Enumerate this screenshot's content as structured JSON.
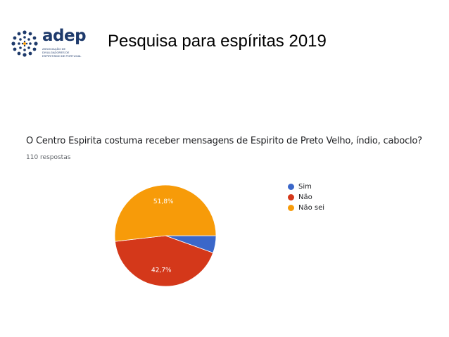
{
  "logo": {
    "word": "adep",
    "subtitle": "associação de divulgadores de espiritismo de portugal"
  },
  "slide": {
    "title": "Pesquisa para espíritas  2019"
  },
  "question": "O Centro Espirita costuma receber mensagens de Espirito de Preto Velho, índio, caboclo?",
  "responses": "110 respostas",
  "colors": {
    "sim": "#3b67c9",
    "nao": "#d4381a",
    "nao_sei": "#f79b09"
  },
  "chart_data": {
    "type": "pie",
    "categories": [
      "Sim",
      "Não",
      "Não sei"
    ],
    "values": [
      5.5,
      42.7,
      51.8
    ],
    "slice_labels": [
      "",
      "42,7%",
      "51,8%"
    ],
    "colors": [
      "#3b67c9",
      "#d4381a",
      "#f79b09"
    ],
    "legend_position": "right"
  }
}
